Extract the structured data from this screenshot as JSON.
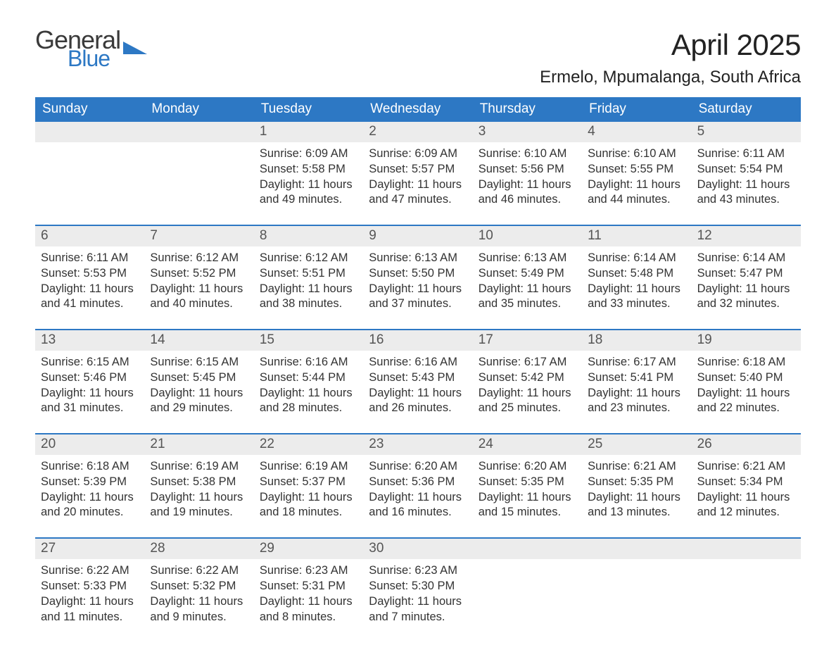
{
  "logo": {
    "general": "General",
    "blue": "Blue",
    "tri_color": "#2d78c4"
  },
  "title": "April 2025",
  "location": "Ermelo, Mpumalanga, South Africa",
  "colors": {
    "header_bg": "#2d78c4",
    "header_fg": "#ffffff",
    "daynum_bg": "#ececec",
    "daynum_fg": "#555555",
    "body_fg": "#333333",
    "week_border": "#2d78c4",
    "page_bg": "#ffffff"
  },
  "typography": {
    "title_fontsize": 42,
    "location_fontsize": 24,
    "dow_fontsize": 19,
    "daynum_fontsize": 19,
    "cell_fontsize": 16.5
  },
  "days_of_week": [
    "Sunday",
    "Monday",
    "Tuesday",
    "Wednesday",
    "Thursday",
    "Friday",
    "Saturday"
  ],
  "weeks": [
    [
      {
        "n": "",
        "sr": "",
        "ss": "",
        "dl": ""
      },
      {
        "n": "",
        "sr": "",
        "ss": "",
        "dl": ""
      },
      {
        "n": "1",
        "sr": "Sunrise: 6:09 AM",
        "ss": "Sunset: 5:58 PM",
        "dl": "Daylight: 11 hours and 49 minutes."
      },
      {
        "n": "2",
        "sr": "Sunrise: 6:09 AM",
        "ss": "Sunset: 5:57 PM",
        "dl": "Daylight: 11 hours and 47 minutes."
      },
      {
        "n": "3",
        "sr": "Sunrise: 6:10 AM",
        "ss": "Sunset: 5:56 PM",
        "dl": "Daylight: 11 hours and 46 minutes."
      },
      {
        "n": "4",
        "sr": "Sunrise: 6:10 AM",
        "ss": "Sunset: 5:55 PM",
        "dl": "Daylight: 11 hours and 44 minutes."
      },
      {
        "n": "5",
        "sr": "Sunrise: 6:11 AM",
        "ss": "Sunset: 5:54 PM",
        "dl": "Daylight: 11 hours and 43 minutes."
      }
    ],
    [
      {
        "n": "6",
        "sr": "Sunrise: 6:11 AM",
        "ss": "Sunset: 5:53 PM",
        "dl": "Daylight: 11 hours and 41 minutes."
      },
      {
        "n": "7",
        "sr": "Sunrise: 6:12 AM",
        "ss": "Sunset: 5:52 PM",
        "dl": "Daylight: 11 hours and 40 minutes."
      },
      {
        "n": "8",
        "sr": "Sunrise: 6:12 AM",
        "ss": "Sunset: 5:51 PM",
        "dl": "Daylight: 11 hours and 38 minutes."
      },
      {
        "n": "9",
        "sr": "Sunrise: 6:13 AM",
        "ss": "Sunset: 5:50 PM",
        "dl": "Daylight: 11 hours and 37 minutes."
      },
      {
        "n": "10",
        "sr": "Sunrise: 6:13 AM",
        "ss": "Sunset: 5:49 PM",
        "dl": "Daylight: 11 hours and 35 minutes."
      },
      {
        "n": "11",
        "sr": "Sunrise: 6:14 AM",
        "ss": "Sunset: 5:48 PM",
        "dl": "Daylight: 11 hours and 33 minutes."
      },
      {
        "n": "12",
        "sr": "Sunrise: 6:14 AM",
        "ss": "Sunset: 5:47 PM",
        "dl": "Daylight: 11 hours and 32 minutes."
      }
    ],
    [
      {
        "n": "13",
        "sr": "Sunrise: 6:15 AM",
        "ss": "Sunset: 5:46 PM",
        "dl": "Daylight: 11 hours and 31 minutes."
      },
      {
        "n": "14",
        "sr": "Sunrise: 6:15 AM",
        "ss": "Sunset: 5:45 PM",
        "dl": "Daylight: 11 hours and 29 minutes."
      },
      {
        "n": "15",
        "sr": "Sunrise: 6:16 AM",
        "ss": "Sunset: 5:44 PM",
        "dl": "Daylight: 11 hours and 28 minutes."
      },
      {
        "n": "16",
        "sr": "Sunrise: 6:16 AM",
        "ss": "Sunset: 5:43 PM",
        "dl": "Daylight: 11 hours and 26 minutes."
      },
      {
        "n": "17",
        "sr": "Sunrise: 6:17 AM",
        "ss": "Sunset: 5:42 PM",
        "dl": "Daylight: 11 hours and 25 minutes."
      },
      {
        "n": "18",
        "sr": "Sunrise: 6:17 AM",
        "ss": "Sunset: 5:41 PM",
        "dl": "Daylight: 11 hours and 23 minutes."
      },
      {
        "n": "19",
        "sr": "Sunrise: 6:18 AM",
        "ss": "Sunset: 5:40 PM",
        "dl": "Daylight: 11 hours and 22 minutes."
      }
    ],
    [
      {
        "n": "20",
        "sr": "Sunrise: 6:18 AM",
        "ss": "Sunset: 5:39 PM",
        "dl": "Daylight: 11 hours and 20 minutes."
      },
      {
        "n": "21",
        "sr": "Sunrise: 6:19 AM",
        "ss": "Sunset: 5:38 PM",
        "dl": "Daylight: 11 hours and 19 minutes."
      },
      {
        "n": "22",
        "sr": "Sunrise: 6:19 AM",
        "ss": "Sunset: 5:37 PM",
        "dl": "Daylight: 11 hours and 18 minutes."
      },
      {
        "n": "23",
        "sr": "Sunrise: 6:20 AM",
        "ss": "Sunset: 5:36 PM",
        "dl": "Daylight: 11 hours and 16 minutes."
      },
      {
        "n": "24",
        "sr": "Sunrise: 6:20 AM",
        "ss": "Sunset: 5:35 PM",
        "dl": "Daylight: 11 hours and 15 minutes."
      },
      {
        "n": "25",
        "sr": "Sunrise: 6:21 AM",
        "ss": "Sunset: 5:35 PM",
        "dl": "Daylight: 11 hours and 13 minutes."
      },
      {
        "n": "26",
        "sr": "Sunrise: 6:21 AM",
        "ss": "Sunset: 5:34 PM",
        "dl": "Daylight: 11 hours and 12 minutes."
      }
    ],
    [
      {
        "n": "27",
        "sr": "Sunrise: 6:22 AM",
        "ss": "Sunset: 5:33 PM",
        "dl": "Daylight: 11 hours and 11 minutes."
      },
      {
        "n": "28",
        "sr": "Sunrise: 6:22 AM",
        "ss": "Sunset: 5:32 PM",
        "dl": "Daylight: 11 hours and 9 minutes."
      },
      {
        "n": "29",
        "sr": "Sunrise: 6:23 AM",
        "ss": "Sunset: 5:31 PM",
        "dl": "Daylight: 11 hours and 8 minutes."
      },
      {
        "n": "30",
        "sr": "Sunrise: 6:23 AM",
        "ss": "Sunset: 5:30 PM",
        "dl": "Daylight: 11 hours and 7 minutes."
      },
      {
        "n": "",
        "sr": "",
        "ss": "",
        "dl": ""
      },
      {
        "n": "",
        "sr": "",
        "ss": "",
        "dl": ""
      },
      {
        "n": "",
        "sr": "",
        "ss": "",
        "dl": ""
      }
    ]
  ]
}
